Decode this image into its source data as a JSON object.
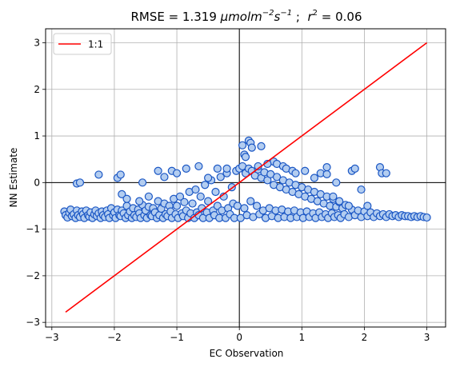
{
  "chart_data": {
    "type": "scatter",
    "title": {
      "prefix": "RMSE = 1.319 ",
      "unit_main": "μmolm",
      "unit_exp1": "−2",
      "unit_s": "s",
      "unit_exp2": "−1",
      "mid": " ;  ",
      "r": "r",
      "r_exp": "2",
      "suffix": " = 0.06"
    },
    "xlabel": "EC Observation",
    "ylabel": "NN Estimate",
    "xlim": [
      -3.1,
      3.3
    ],
    "ylim": [
      -3.1,
      3.3
    ],
    "xticks": [
      {
        "v": -3,
        "label": "−3"
      },
      {
        "v": -2,
        "label": "−2"
      },
      {
        "v": -1,
        "label": "−1"
      },
      {
        "v": 0,
        "label": "0"
      },
      {
        "v": 1,
        "label": "1"
      },
      {
        "v": 2,
        "label": "2"
      },
      {
        "v": 3,
        "label": "3"
      }
    ],
    "yticks": [
      {
        "v": -3,
        "label": "−3"
      },
      {
        "v": -2,
        "label": "−2"
      },
      {
        "v": -1,
        "label": "−1"
      },
      {
        "v": 0,
        "label": "0"
      },
      {
        "v": 1,
        "label": "1"
      },
      {
        "v": 2,
        "label": "2"
      },
      {
        "v": 3,
        "label": "3"
      }
    ],
    "grid": true,
    "legend_position": "upper-left",
    "series": [
      {
        "kind": "scatter",
        "marker_face": "#b3cdf0",
        "marker_edge": "#1a56c4",
        "points": [
          [
            -2.8,
            -0.62
          ],
          [
            -2.78,
            -0.7
          ],
          [
            -2.75,
            -0.75
          ],
          [
            -2.72,
            -0.65
          ],
          [
            -2.7,
            -0.58
          ],
          [
            -2.68,
            -0.72
          ],
          [
            -2.65,
            -0.68
          ],
          [
            -2.62,
            -0.76
          ],
          [
            -2.6,
            -0.6
          ],
          [
            -2.58,
            -0.7
          ],
          [
            -2.55,
            -0.74
          ],
          [
            -2.52,
            -0.62
          ],
          [
            -2.5,
            -0.68
          ],
          [
            -2.48,
            -0.76
          ],
          [
            -2.45,
            -0.6
          ],
          [
            -2.42,
            -0.7
          ],
          [
            -2.4,
            -0.73
          ],
          [
            -2.38,
            -0.64
          ],
          [
            -2.35,
            -0.76
          ],
          [
            -2.32,
            -0.68
          ],
          [
            -2.3,
            -0.6
          ],
          [
            -2.28,
            -0.72
          ],
          [
            -2.25,
            -0.66
          ],
          [
            -2.22,
            -0.76
          ],
          [
            -2.2,
            -0.62
          ],
          [
            -2.18,
            -0.7
          ],
          [
            -2.15,
            -0.74
          ],
          [
            -2.12,
            -0.6
          ],
          [
            -2.1,
            -0.68
          ],
          [
            -2.08,
            -0.76
          ],
          [
            -2.05,
            -0.55
          ],
          [
            -2.02,
            -0.7
          ],
          [
            -2.0,
            -0.64
          ],
          [
            -1.98,
            -0.76
          ],
          [
            -1.95,
            -0.58
          ],
          [
            -1.92,
            -0.7
          ],
          [
            -1.9,
            -0.72
          ],
          [
            -1.88,
            -0.6
          ],
          [
            -1.85,
            -0.66
          ],
          [
            -1.82,
            -0.76
          ],
          [
            -1.8,
            -0.5
          ],
          [
            -1.78,
            -0.7
          ],
          [
            -1.75,
            -0.62
          ],
          [
            -1.72,
            -0.76
          ],
          [
            -1.7,
            -0.55
          ],
          [
            -1.68,
            -0.7
          ],
          [
            -1.65,
            -0.74
          ],
          [
            -1.62,
            -0.58
          ],
          [
            -1.6,
            -0.66
          ],
          [
            -1.58,
            -0.76
          ],
          [
            -1.55,
            -0.48
          ],
          [
            -1.52,
            -0.7
          ],
          [
            -1.5,
            -0.6
          ],
          [
            -1.48,
            -0.76
          ],
          [
            -1.45,
            -0.52
          ],
          [
            -1.42,
            -0.7
          ],
          [
            -1.4,
            -0.72
          ],
          [
            -1.38,
            -0.55
          ],
          [
            -1.35,
            -0.64
          ],
          [
            -1.32,
            -0.76
          ],
          [
            -1.3,
            -0.4
          ],
          [
            -1.28,
            -0.7
          ],
          [
            -1.25,
            -0.56
          ],
          [
            -1.22,
            -0.76
          ],
          [
            -1.2,
            -0.45
          ],
          [
            -1.18,
            -0.68
          ],
          [
            -1.15,
            -0.72
          ],
          [
            -1.12,
            -0.5
          ],
          [
            -1.1,
            -0.62
          ],
          [
            -1.08,
            -0.76
          ],
          [
            -1.05,
            -0.35
          ],
          [
            -1.02,
            -0.68
          ],
          [
            -1.0,
            -0.5
          ],
          [
            -0.98,
            -0.76
          ],
          [
            -0.95,
            -0.3
          ],
          [
            -0.92,
            -0.66
          ],
          [
            -0.9,
            -0.72
          ],
          [
            -0.88,
            -0.42
          ],
          [
            -0.85,
            -0.6
          ],
          [
            -0.82,
            -0.76
          ],
          [
            -0.8,
            -0.2
          ],
          [
            -0.78,
            -0.66
          ],
          [
            -0.75,
            -0.45
          ],
          [
            -0.72,
            -0.76
          ],
          [
            -0.7,
            -0.15
          ],
          [
            -0.68,
            -0.64
          ],
          [
            -0.65,
            -0.7
          ],
          [
            -0.62,
            -0.3
          ],
          [
            -0.6,
            -0.55
          ],
          [
            -0.58,
            -0.76
          ],
          [
            -0.55,
            -0.05
          ],
          [
            -0.52,
            -0.64
          ],
          [
            -0.5,
            -0.4
          ],
          [
            -0.48,
            -0.76
          ],
          [
            -0.45,
            0.05
          ],
          [
            -0.42,
            -0.6
          ],
          [
            -0.4,
            -0.7
          ],
          [
            -0.38,
            -0.2
          ],
          [
            -0.35,
            -0.5
          ],
          [
            -0.32,
            -0.76
          ],
          [
            -0.3,
            0.12
          ],
          [
            -0.28,
            -0.6
          ],
          [
            -0.25,
            -0.3
          ],
          [
            -0.22,
            -0.76
          ],
          [
            -0.2,
            0.2
          ],
          [
            -0.18,
            -0.55
          ],
          [
            -0.15,
            -0.68
          ],
          [
            -0.12,
            -0.1
          ],
          [
            -0.1,
            -0.45
          ],
          [
            -0.08,
            -0.76
          ],
          [
            -0.05,
            0.25
          ],
          [
            -0.03,
            -0.5
          ],
          [
            0.0,
            0.3
          ],
          [
            0.02,
            -0.76
          ],
          [
            0.05,
            0.35
          ],
          [
            0.08,
            -0.55
          ],
          [
            0.1,
            0.2
          ],
          [
            0.12,
            -0.7
          ],
          [
            0.15,
            0.3
          ],
          [
            0.18,
            -0.4
          ],
          [
            0.2,
            0.25
          ],
          [
            0.22,
            -0.74
          ],
          [
            0.25,
            0.15
          ],
          [
            0.28,
            -0.5
          ],
          [
            0.3,
            0.28
          ],
          [
            0.32,
            -0.68
          ],
          [
            0.35,
            0.1
          ],
          [
            0.38,
            -0.6
          ],
          [
            0.4,
            0.22
          ],
          [
            0.42,
            -0.76
          ],
          [
            0.45,
            0.05
          ],
          [
            0.48,
            -0.55
          ],
          [
            0.5,
            0.18
          ],
          [
            0.52,
            -0.72
          ],
          [
            0.55,
            -0.05
          ],
          [
            0.58,
            -0.6
          ],
          [
            0.6,
            0.12
          ],
          [
            0.62,
            -0.76
          ],
          [
            0.65,
            -0.1
          ],
          [
            0.68,
            -0.58
          ],
          [
            0.7,
            0.05
          ],
          [
            0.72,
            -0.74
          ],
          [
            0.75,
            -0.15
          ],
          [
            0.78,
            -0.62
          ],
          [
            0.8,
            0.0
          ],
          [
            0.82,
            -0.76
          ],
          [
            0.85,
            -0.2
          ],
          [
            0.88,
            -0.6
          ],
          [
            0.9,
            -0.05
          ],
          [
            0.92,
            -0.74
          ],
          [
            0.95,
            -0.25
          ],
          [
            0.98,
            -0.64
          ],
          [
            1.0,
            -0.1
          ],
          [
            1.02,
            -0.76
          ],
          [
            1.05,
            -0.3
          ],
          [
            1.08,
            -0.62
          ],
          [
            1.1,
            -0.15
          ],
          [
            1.12,
            -0.74
          ],
          [
            1.15,
            -0.35
          ],
          [
            1.18,
            -0.66
          ],
          [
            1.2,
            -0.2
          ],
          [
            1.22,
            -0.76
          ],
          [
            1.25,
            -0.4
          ],
          [
            1.28,
            -0.64
          ],
          [
            1.3,
            -0.25
          ],
          [
            1.32,
            -0.74
          ],
          [
            1.35,
            -0.45
          ],
          [
            1.38,
            -0.68
          ],
          [
            1.4,
            -0.3
          ],
          [
            1.42,
            -0.76
          ],
          [
            1.45,
            -0.5
          ],
          [
            1.48,
            -0.66
          ],
          [
            1.5,
            -0.35
          ],
          [
            1.52,
            -0.74
          ],
          [
            1.55,
            -0.52
          ],
          [
            1.58,
            -0.7
          ],
          [
            1.6,
            -0.42
          ],
          [
            1.62,
            -0.76
          ],
          [
            1.65,
            -0.55
          ],
          [
            1.68,
            -0.68
          ],
          [
            1.7,
            -0.48
          ],
          [
            1.75,
            -0.74
          ],
          [
            1.8,
            -0.58
          ],
          [
            1.85,
            -0.7
          ],
          [
            1.9,
            -0.6
          ],
          [
            1.95,
            -0.74
          ],
          [
            2.0,
            -0.62
          ],
          [
            2.05,
            -0.72
          ],
          [
            2.1,
            -0.64
          ],
          [
            2.15,
            -0.74
          ],
          [
            2.2,
            -0.66
          ],
          [
            2.25,
            -0.72
          ],
          [
            2.3,
            -0.68
          ],
          [
            2.35,
            -0.74
          ],
          [
            2.4,
            -0.68
          ],
          [
            2.45,
            -0.72
          ],
          [
            2.5,
            -0.7
          ],
          [
            2.55,
            -0.74
          ],
          [
            2.6,
            -0.7
          ],
          [
            2.65,
            -0.72
          ],
          [
            2.7,
            -0.72
          ],
          [
            2.75,
            -0.74
          ],
          [
            2.8,
            -0.72
          ],
          [
            2.85,
            -0.74
          ],
          [
            2.9,
            -0.72
          ],
          [
            2.95,
            -0.74
          ],
          [
            3.0,
            -0.75
          ],
          [
            -2.6,
            -0.02
          ],
          [
            -2.55,
            0.0
          ],
          [
            -2.25,
            0.17
          ],
          [
            -1.95,
            0.1
          ],
          [
            -1.9,
            0.17
          ],
          [
            -1.88,
            -0.25
          ],
          [
            -1.55,
            0.0
          ],
          [
            -1.3,
            0.25
          ],
          [
            -1.2,
            0.12
          ],
          [
            -1.08,
            0.25
          ],
          [
            -1.0,
            0.2
          ],
          [
            -0.85,
            0.3
          ],
          [
            -0.65,
            0.35
          ],
          [
            -0.35,
            0.3
          ],
          [
            0.05,
            0.8
          ],
          [
            0.08,
            0.6
          ],
          [
            0.1,
            0.55
          ],
          [
            0.15,
            0.9
          ],
          [
            0.18,
            0.85
          ],
          [
            0.2,
            0.75
          ],
          [
            0.35,
            0.78
          ],
          [
            0.55,
            0.45
          ],
          [
            0.6,
            0.4
          ],
          [
            0.7,
            0.35
          ],
          [
            0.75,
            0.3
          ],
          [
            0.85,
            0.25
          ],
          [
            0.9,
            0.2
          ],
          [
            1.05,
            0.25
          ],
          [
            1.2,
            0.1
          ],
          [
            1.3,
            0.2
          ],
          [
            1.4,
            0.18
          ],
          [
            1.4,
            0.33
          ],
          [
            1.55,
            0.0
          ],
          [
            1.8,
            0.25
          ],
          [
            1.85,
            0.3
          ],
          [
            1.95,
            -0.15
          ],
          [
            2.25,
            0.33
          ],
          [
            2.28,
            0.2
          ],
          [
            2.35,
            0.2
          ],
          [
            1.5,
            -0.3
          ],
          [
            1.6,
            -0.4
          ],
          [
            1.75,
            -0.5
          ],
          [
            2.05,
            -0.5
          ],
          [
            -1.6,
            -0.4
          ],
          [
            -1.8,
            -0.35
          ],
          [
            -1.45,
            -0.3
          ],
          [
            -0.5,
            0.1
          ],
          [
            -0.2,
            0.3
          ],
          [
            0.3,
            0.35
          ],
          [
            0.45,
            0.4
          ]
        ]
      },
      {
        "kind": "line",
        "name": "1:1",
        "color": "#ff0000",
        "points": [
          [
            -2.78,
            -2.78
          ],
          [
            3.0,
            3.0
          ]
        ]
      }
    ]
  },
  "legend": {
    "label": "1:1",
    "color": "#ff0000"
  }
}
